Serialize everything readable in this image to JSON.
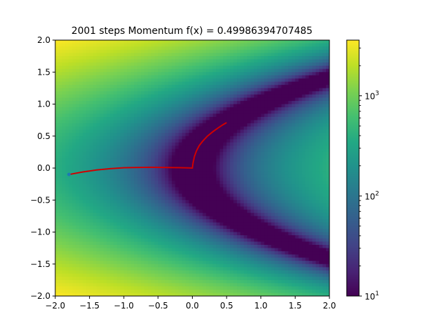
{
  "chart_data": {
    "type": "heatmap",
    "title": "2001 steps  Momentum f(x) = 0.49986394707485",
    "function": "log-scaled contour of f(x, y) = (x - y^2)^2 over the square",
    "xlabel": "",
    "ylabel": "",
    "xlim": [
      -2.0,
      2.0
    ],
    "ylim": [
      -2.0,
      2.0
    ],
    "x_ticks": [
      -2.0,
      -1.5,
      -1.0,
      -0.5,
      0.0,
      0.5,
      1.0,
      1.5,
      2.0
    ],
    "x_tick_labels": [
      "−2.0",
      "−1.5",
      "−1.0",
      "−0.5",
      "0.0",
      "0.5",
      "1.0",
      "1.5",
      "2.0"
    ],
    "y_ticks": [
      -2.0,
      -1.5,
      -1.0,
      -0.5,
      0.0,
      0.5,
      1.0,
      1.5,
      2.0
    ],
    "y_tick_labels": [
      "−2.0",
      "−1.5",
      "−1.0",
      "−0.5",
      "0.0",
      "0.5",
      "1.0",
      "1.5",
      "2.0"
    ],
    "colorbar": {
      "scale": "log",
      "vmin": 10,
      "vmax": 3600,
      "major_ticks": [
        {
          "value": 10,
          "base": "10",
          "exp": "1"
        },
        {
          "value": 100,
          "base": "10",
          "exp": "2"
        },
        {
          "value": 1000,
          "base": "10",
          "exp": "3"
        }
      ],
      "colormap": "viridis"
    },
    "grid": false,
    "trajectory": {
      "color": "#d00000",
      "start_marker_color": "#1f77b4",
      "points": [
        [
          -1.8,
          -0.1
        ],
        [
          -1.6,
          -0.06
        ],
        [
          -1.4,
          -0.03
        ],
        [
          -1.2,
          -0.01
        ],
        [
          -1.0,
          0.005
        ],
        [
          -0.8,
          0.01
        ],
        [
          -0.6,
          0.012
        ],
        [
          -0.4,
          0.01
        ],
        [
          -0.2,
          0.006
        ],
        [
          -0.05,
          0.003
        ],
        [
          0.0,
          0.0
        ],
        [
          0.01,
          0.08
        ],
        [
          0.03,
          0.18
        ],
        [
          0.06,
          0.27
        ],
        [
          0.1,
          0.35
        ],
        [
          0.15,
          0.42
        ],
        [
          0.22,
          0.5
        ],
        [
          0.3,
          0.57
        ],
        [
          0.38,
          0.63
        ],
        [
          0.45,
          0.68
        ],
        [
          0.5,
          0.71
        ]
      ]
    }
  }
}
